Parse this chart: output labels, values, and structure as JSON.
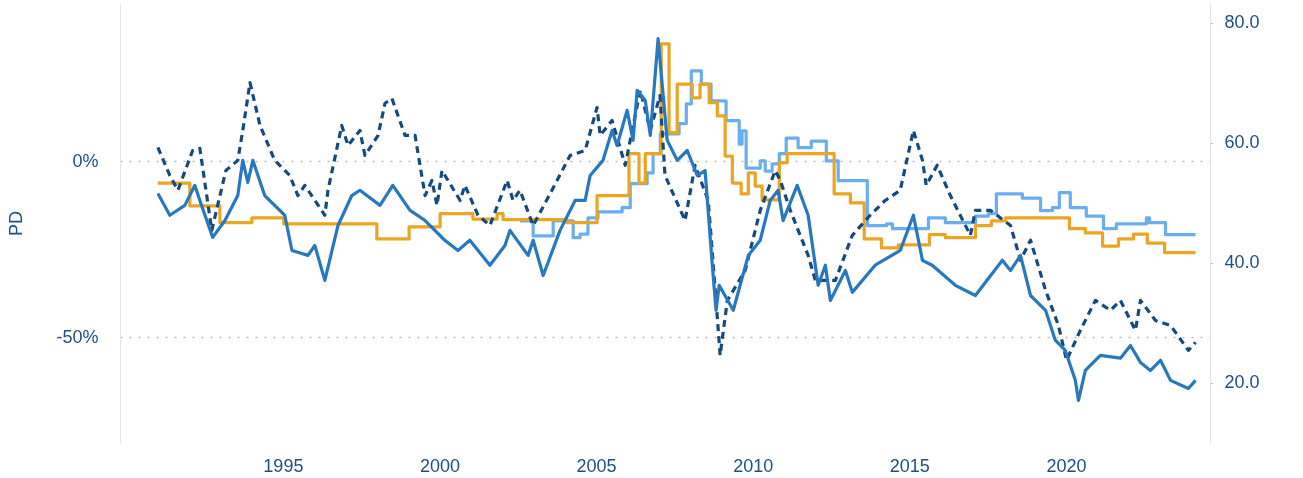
{
  "chart_data": {
    "type": "line",
    "ylabel": "PD",
    "xlim": [
      1989.8,
      2024.6
    ],
    "xticks": [
      1995,
      2000,
      2005,
      2010,
      2015,
      2020
    ],
    "ylim": [
      -80,
      45
    ],
    "yticks": [
      {
        "value": -50,
        "label": "-50%"
      },
      {
        "value": 0,
        "label": "0%"
      }
    ],
    "y2lim": [
      10,
      83.3
    ],
    "y2ticks": [
      {
        "value": 20,
        "label": "20.0"
      },
      {
        "value": 40,
        "label": "40.0"
      },
      {
        "value": 60,
        "label": "60.0"
      },
      {
        "value": 80,
        "label": "80.0"
      }
    ],
    "grid": "y",
    "series": [
      {
        "type": "step",
        "axis": "y2",
        "color": "#6aaef0",
        "x": [
          2002.57,
          2002.99,
          2003.63,
          2004.27,
          2004.49,
          2004.74,
          2005.06,
          2005.83,
          2006.09,
          2006.63,
          2006.82,
          2007.05,
          2007.65,
          2007.88,
          2008.04,
          2008.36,
          2008.67,
          2009.15,
          2009.57,
          2009.66,
          2009.79,
          2010.24,
          2010.4,
          2010.62,
          2010.85,
          2011.07,
          2011.45,
          2011.87,
          2012.35,
          2012.73,
          2013.66,
          2014.27,
          2014.46,
          2015.61,
          2016.15,
          2017.11,
          2017.52,
          2017.78,
          2018.61,
          2019.19,
          2019.57,
          2019.79,
          2020.14,
          2020.65,
          2021.2,
          2021.61,
          2022.57,
          2022.67,
          2023.18,
          2024.14
        ],
        "values": [
          47.0,
          44.5,
          47.0,
          44.2,
          44.8,
          47.5,
          48.5,
          49.2,
          53.2,
          55.0,
          58.2,
          61.5,
          63.2,
          66.5,
          72.0,
          69.8,
          67.0,
          63.7,
          59.8,
          62.0,
          55.8,
          57.0,
          55.3,
          56.5,
          58.2,
          60.8,
          59.2,
          60.3,
          57.0,
          53.7,
          46.2,
          46.5,
          45.7,
          47.5,
          46.7,
          47.8,
          48.2,
          51.5,
          50.8,
          48.7,
          49.2,
          51.7,
          49.2,
          47.8,
          45.7,
          46.5,
          47.5,
          46.7,
          44.7,
          44.7
        ]
      },
      {
        "type": "line",
        "axis": "y",
        "color": "#174a7c",
        "line_style": "dashed",
        "x": [
          1991.01,
          1991.39,
          1991.65,
          1992.12,
          1992.35,
          1992.73,
          1993.18,
          1993.56,
          1993.72,
          1993.95,
          1994.27,
          1994.74,
          1995.22,
          1995.48,
          1995.7,
          1996.34,
          1996.44,
          1996.88,
          1997.08,
          1997.46,
          1997.62,
          1998.04,
          1998.26,
          1998.48,
          1998.9,
          1999.22,
          1999.54,
          1999.76,
          1999.92,
          2000.08,
          2000.66,
          2000.81,
          2001.23,
          2001.61,
          2002.16,
          2002.35,
          2002.57,
          2002.99,
          2003.59,
          2004.17,
          2004.65,
          2005.03,
          2005.13,
          2005.51,
          2005.93,
          2006.41,
          2006.73,
          2007.04,
          2007.2,
          2007.84,
          2008.16,
          2008.58,
          2008.83,
          2008.96,
          2009.19,
          2009.76,
          2010.24,
          2010.72,
          2010.88,
          2011.2,
          2011.77,
          2012.0,
          2012.64,
          2013.18,
          2013.75,
          2014.23,
          2014.71,
          2015.13,
          2015.42,
          2015.54,
          2015.89,
          2016.31,
          2016.95,
          2017.11,
          2017.59,
          2018.23,
          2018.55,
          2018.87,
          2019.35,
          2019.76,
          2020.02,
          2020.46,
          2020.94,
          2021.42,
          2021.74,
          2022.22,
          2022.38,
          2022.86,
          2023.34,
          2023.91,
          2024.14
        ],
        "values": [
          4.0,
          -4.0,
          -8.2,
          3.1,
          3.7,
          -19.6,
          -2.6,
          0.3,
          8.8,
          22.4,
          10.2,
          0.3,
          -4.0,
          -9.7,
          -6.8,
          -15.3,
          -8.2,
          10.2,
          4.5,
          8.8,
          1.7,
          7.4,
          16.5,
          17.9,
          7.4,
          7.4,
          -9.7,
          -5.4,
          -12.5,
          -2.6,
          -11.1,
          -6.8,
          -15.3,
          -18.2,
          -5.4,
          -11.1,
          -8.2,
          -18.2,
          -8.2,
          1.7,
          3.1,
          15.3,
          7.4,
          11.6,
          -1.1,
          20.2,
          8.8,
          18.7,
          -4.0,
          -16.8,
          -1.1,
          -11.1,
          -39.5,
          -55.1,
          -39.5,
          -31.0,
          -13.9,
          -2.6,
          -5.4,
          -13.9,
          -26.7,
          -33.8,
          -33.8,
          -21.0,
          -15.3,
          -11.1,
          -8.2,
          8.8,
          0.3,
          -6.8,
          -1.1,
          -9.7,
          -21.0,
          -13.9,
          -13.9,
          -18.2,
          -28.1,
          -22.4,
          -36.6,
          -46.6,
          -56.5,
          -48.0,
          -39.5,
          -42.3,
          -39.5,
          -48.0,
          -39.5,
          -45.2,
          -46.6,
          -53.7,
          -51.4
        ]
      },
      {
        "type": "line",
        "axis": "y",
        "color": "#2878c0",
        "x": [
          1991.01,
          1991.39,
          1991.87,
          1992.19,
          1992.35,
          1992.76,
          1993.15,
          1993.56,
          1993.72,
          1993.88,
          1994.04,
          1994.42,
          1995.06,
          1995.29,
          1995.8,
          1996.02,
          1996.34,
          1996.76,
          1997.2,
          1997.46,
          1998.1,
          1998.51,
          1999.06,
          1999.54,
          2000.17,
          2000.59,
          2000.97,
          2001.61,
          2002.09,
          2002.25,
          2002.83,
          2002.99,
          2003.31,
          2003.85,
          2004.33,
          2004.65,
          2004.81,
          2005.22,
          2005.51,
          2005.67,
          2005.99,
          2006.18,
          2006.31,
          2006.57,
          2006.73,
          2006.98,
          2007.27,
          2007.59,
          2007.91,
          2008.23,
          2008.48,
          2008.71,
          2008.83,
          2008.93,
          2009.38,
          2009.86,
          2010.24,
          2010.56,
          2010.81,
          2010.97,
          2011.42,
          2011.77,
          2012.09,
          2012.32,
          2012.48,
          2012.96,
          2013.18,
          2013.91,
          2014.71,
          2015.13,
          2015.42,
          2015.73,
          2016.47,
          2017.11,
          2017.97,
          2018.23,
          2018.55,
          2018.87,
          2019.35,
          2019.66,
          2019.98,
          2020.3,
          2020.4,
          2020.62,
          2021.1,
          2021.74,
          2022.06,
          2022.38,
          2022.7,
          2023.02,
          2023.34,
          2023.91,
          2024.14
        ],
        "values": [
          -9.1,
          -15.3,
          -12.5,
          -6.8,
          -11.1,
          -21.6,
          -16.8,
          -9.7,
          0.3,
          -6.0,
          0.3,
          -9.7,
          -15.3,
          -25.3,
          -26.7,
          -23.9,
          -33.8,
          -18.2,
          -9.7,
          -8.2,
          -12.5,
          -6.8,
          -13.9,
          -16.8,
          -22.4,
          -25.3,
          -22.4,
          -29.5,
          -23.9,
          -19.6,
          -26.7,
          -22.4,
          -32.4,
          -19.6,
          -11.1,
          -11.1,
          -4.0,
          0.3,
          8.8,
          4.5,
          14.5,
          6.0,
          20.2,
          17.3,
          7.4,
          34.9,
          6.0,
          0.3,
          3.1,
          -4.0,
          -2.6,
          -29.5,
          -42.3,
          -35.2,
          -42.3,
          -26.7,
          -22.4,
          -11.1,
          -8.2,
          -16.8,
          -6.8,
          -15.3,
          -35.2,
          -29.5,
          -39.5,
          -31.0,
          -37.2,
          -29.5,
          -25.3,
          -15.3,
          -28.1,
          -29.5,
          -35.2,
          -38.1,
          -28.1,
          -31.0,
          -26.7,
          -38.1,
          -42.3,
          -50.8,
          -53.7,
          -62.2,
          -67.9,
          -59.4,
          -55.1,
          -55.9,
          -52.3,
          -57.1,
          -59.4,
          -56.5,
          -62.2,
          -64.5,
          -62.2
        ]
      },
      {
        "type": "step",
        "axis": "y2",
        "color": "#eaa523",
        "x": [
          1991.01,
          1992.03,
          1992.99,
          1994.01,
          1995.03,
          1998.0,
          1999.03,
          2000.02,
          2001.07,
          2001.84,
          2002.03,
          2004.07,
          2005.03,
          2006.05,
          2006.37,
          2006.57,
          2007.08,
          2007.33,
          2007.59,
          2008.07,
          2008.32,
          2008.61,
          2008.87,
          2009.12,
          2009.35,
          2009.63,
          2009.86,
          2010.08,
          2010.3,
          2010.85,
          2011.1,
          2012.6,
          2013.12,
          2013.56,
          2014.11,
          2014.65,
          2015.64,
          2016.15,
          2017.11,
          2017.62,
          2018.07,
          2020.11,
          2020.62,
          2021.17,
          2021.68,
          2022.16,
          2022.6,
          2023.15,
          2024.14
        ],
        "values": [
          53.3,
          49.5,
          46.7,
          47.5,
          46.5,
          44.0,
          46.0,
          48.2,
          47.3,
          48.2,
          47.2,
          46.7,
          51.2,
          58.2,
          53.3,
          58.2,
          76.5,
          61.7,
          69.8,
          67.5,
          69.8,
          66.7,
          64.5,
          57.8,
          53.3,
          51.5,
          55.0,
          52.8,
          50.5,
          56.7,
          58.2,
          51.5,
          50.0,
          44.0,
          42.5,
          43.0,
          44.7,
          44.2,
          46.2,
          47.0,
          47.5,
          45.7,
          45.0,
          42.8,
          44.0,
          44.8,
          43.3,
          41.7,
          41.7
        ]
      }
    ]
  }
}
